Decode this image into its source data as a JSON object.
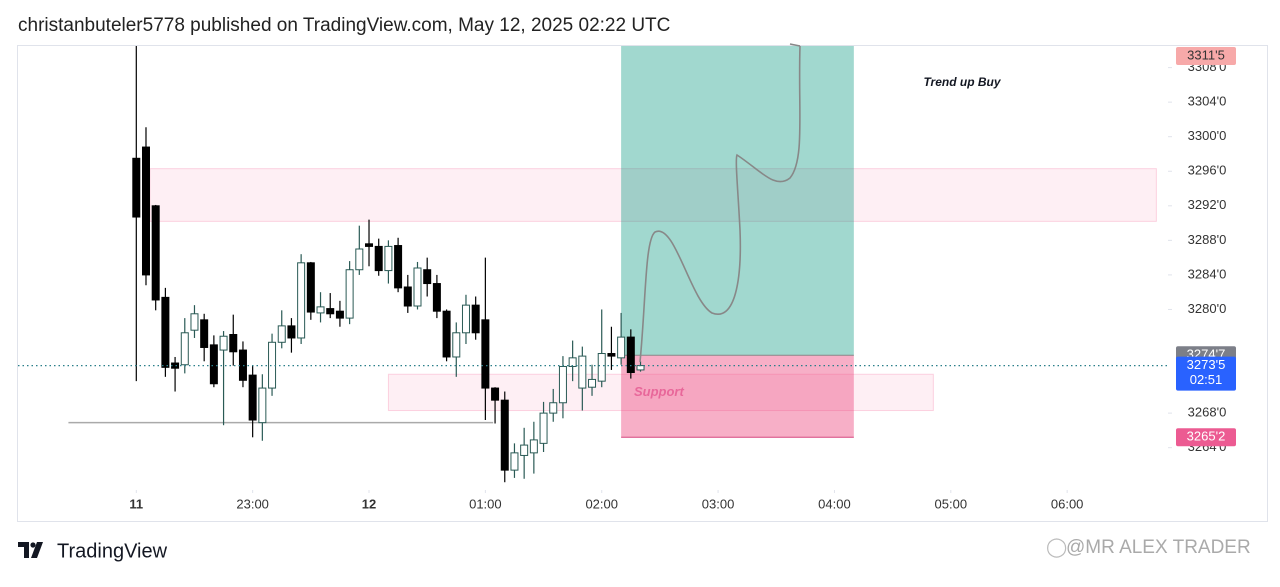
{
  "header": {
    "title": "christanbuteler5778 published on TradingView.com, May 12, 2025 02:22 UTC"
  },
  "chart_data": {
    "type": "candlestick",
    "x": [
      0,
      5,
      10,
      15,
      20,
      25,
      30,
      35,
      40,
      45,
      50,
      55,
      60,
      65,
      70,
      75,
      80,
      85,
      90,
      95,
      100,
      105,
      110,
      115,
      120,
      125,
      130,
      135,
      140,
      145,
      150,
      155,
      160,
      165,
      170,
      175,
      180,
      185,
      190,
      195,
      200,
      205,
      210,
      215,
      220,
      225,
      230,
      235,
      240,
      245,
      250,
      255,
      260
    ],
    "open": [
      3297.5,
      3298.8,
      3292.0,
      3281.4,
      3273.8,
      3273.6,
      3277.6,
      3278.8,
      3275.9,
      3275.3,
      3277.1,
      3275.3,
      3272.4,
      3266.9,
      3270.9,
      3276.2,
      3278.1,
      3276.7,
      3285.4,
      3279.6,
      3280.1,
      3279.8,
      3279.0,
      3284.6,
      3287.6,
      3287.3,
      3284.5,
      3287.4,
      3282.6,
      3280.4,
      3284.6,
      3283.0,
      3279.8,
      3274.5,
      3277.3,
      3280.5,
      3278.8,
      3270.9,
      3269.5,
      3261.4,
      3263.1,
      3263.4,
      3264.5,
      3268.0,
      3269.2,
      3273.4,
      3270.9,
      3271.0,
      3271.7,
      3274.9,
      3274.4,
      3276.8,
      3273.0
    ],
    "high": [
      3310.6,
      3301.1,
      3292.1,
      3282.5,
      3274.5,
      3279.0,
      3280.5,
      3279.5,
      3277.0,
      3277.5,
      3279.4,
      3276.3,
      3273.5,
      3272.5,
      3277.2,
      3279.9,
      3279.0,
      3286.4,
      3285.5,
      3282.0,
      3281.9,
      3281.0,
      3285.6,
      3289.7,
      3290.4,
      3288.2,
      3288.0,
      3288.3,
      3284.0,
      3285.5,
      3286.0,
      3284.0,
      3280.0,
      3278.5,
      3281.7,
      3281.5,
      3286.0,
      3271.0,
      3270.5,
      3264.5,
      3266.3,
      3267.0,
      3269.3,
      3270.8,
      3274.6,
      3276.4,
      3275.7,
      3273.6,
      3280.0,
      3278.0,
      3279.6,
      3277.7,
      3274.0
    ],
    "low": [
      3271.7,
      3282.8,
      3279.9,
      3272.2,
      3270.5,
      3272.6,
      3276.7,
      3274.0,
      3271.0,
      3266.6,
      3273.5,
      3271.0,
      3265.2,
      3264.8,
      3270.0,
      3275.5,
      3275.0,
      3276.0,
      3278.8,
      3278.5,
      3279.0,
      3278.0,
      3278.3,
      3284.0,
      3285.0,
      3283.9,
      3283.0,
      3282.0,
      3279.6,
      3280.0,
      3281.5,
      3279.0,
      3274.0,
      3272.2,
      3276.0,
      3276.5,
      3267.2,
      3266.8,
      3260.0,
      3260.5,
      3260.4,
      3261.0,
      3263.5,
      3267.0,
      3267.4,
      3271.7,
      3268.3,
      3270.0,
      3271.0,
      3273.0,
      3273.6,
      3272.0,
      3272.8
    ],
    "close": [
      3290.7,
      3284.0,
      3281.1,
      3273.3,
      3273.2,
      3277.3,
      3279.5,
      3275.6,
      3271.4,
      3276.9,
      3275.1,
      3271.8,
      3267.2,
      3270.9,
      3276.2,
      3278.1,
      3276.7,
      3285.4,
      3279.7,
      3280.3,
      3279.5,
      3279.0,
      3284.6,
      3287.0,
      3287.3,
      3284.5,
      3287.3,
      3282.5,
      3280.4,
      3284.8,
      3283.0,
      3279.8,
      3274.5,
      3277.3,
      3280.5,
      3277.3,
      3270.9,
      3269.5,
      3261.4,
      3263.4,
      3264.3,
      3264.9,
      3268.0,
      3269.2,
      3273.4,
      3274.4,
      3274.6,
      3271.9,
      3274.9,
      3274.6,
      3276.8,
      3272.7,
      3273.5
    ],
    "up_color": "#ffffff",
    "up_border": "#2a5a55",
    "down_color": "#000000",
    "xlim": [
      -61,
      532
    ],
    "xticks": [
      {
        "value": 0,
        "label": "11"
      },
      {
        "value": 60,
        "label": "23:00"
      },
      {
        "value": 120,
        "label": "12"
      },
      {
        "value": 180,
        "label": "01:00"
      },
      {
        "value": 240,
        "label": "02:00"
      },
      {
        "value": 300,
        "label": "03:00"
      },
      {
        "value": 360,
        "label": "04:00"
      },
      {
        "value": 420,
        "label": "05:00"
      },
      {
        "value": 480,
        "label": "06:00"
      }
    ],
    "ylim": [
      3259.1,
      3310.5
    ],
    "yticks": [
      {
        "value": 3264,
        "label": "3264'0"
      },
      {
        "value": 3268,
        "label": "3268'0"
      },
      {
        "value": 3280,
        "label": "3280'0"
      },
      {
        "value": 3284,
        "label": "3284'0"
      },
      {
        "value": 3288,
        "label": "3288'0"
      },
      {
        "value": 3292,
        "label": "3292'0"
      },
      {
        "value": 3296,
        "label": "3296'0"
      },
      {
        "value": 3300,
        "label": "3300'0"
      },
      {
        "value": 3304,
        "label": "3304'0"
      },
      {
        "value": 3308,
        "label": "3308'0"
      }
    ],
    "zones": [
      {
        "top": 3296.3,
        "bottom": 3290.2,
        "x": [
          7,
          526
        ]
      },
      {
        "top": 3272.5,
        "bottom": 3268.3,
        "x": [
          130,
          411
        ],
        "label": "Support"
      }
    ],
    "support_line": {
      "value": 3266.9,
      "x": [
        -35,
        184
      ]
    },
    "position": {
      "x": [
        250,
        370
      ],
      "target": {
        "value": 3311.5,
        "label": "3311'5"
      },
      "entry": {
        "value": 3274.7,
        "label": "3274'7"
      },
      "stop": {
        "value": 3265.2,
        "label": "3265'2"
      }
    },
    "last_price": {
      "value": 3273.5,
      "label": "3273'5",
      "countdown": "02:51"
    },
    "annotation": "Trend up Buy"
  },
  "footer": {
    "brand": "TradingView",
    "watermark": "@MR ALEX TRADER"
  }
}
